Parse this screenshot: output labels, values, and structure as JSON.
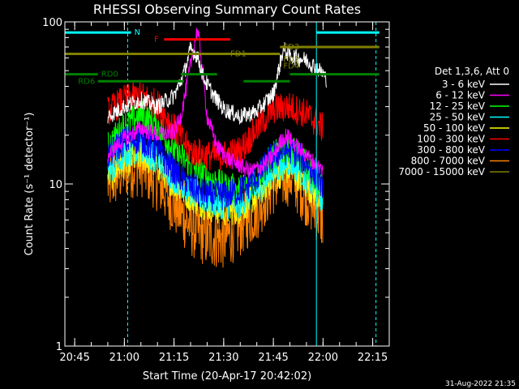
{
  "chart_data": {
    "type": "line",
    "title": "RHESSI Observing Summary Count Rates",
    "xlabel": "Start Time (20-Apr-17 20:42:02)",
    "ylabel": "Count Rate (s⁻¹ detector⁻¹)",
    "y_scale": "log",
    "ylim": [
      1,
      100
    ],
    "xlim_minutes": [
      "20:42:02",
      "22:20:00"
    ],
    "x_ticks": [
      "20:45",
      "21:00",
      "21:15",
      "21:30",
      "21:45",
      "22:00",
      "22:15"
    ],
    "y_ticks": [
      "1",
      "10",
      "100"
    ],
    "legend_title": "Det 1,3,6, Att 0",
    "series": [
      {
        "name": "3 - 6 keV",
        "color": "#ffffff",
        "x": [
          "20:55",
          "21:00",
          "21:05",
          "21:10",
          "21:15",
          "21:18",
          "21:20",
          "21:22",
          "21:24",
          "21:27",
          "21:30",
          "21:35",
          "21:40",
          "21:45",
          "21:48",
          "21:50",
          "21:55",
          "21:58",
          "22:00",
          "22:01"
        ],
        "y": [
          26,
          30,
          33,
          30,
          35,
          48,
          68,
          62,
          45,
          35,
          29,
          26,
          28,
          36,
          68,
          62,
          58,
          52,
          48,
          44
        ]
      },
      {
        "name": "6 - 12 keV",
        "color": "#ff00ff",
        "x": [
          "20:55",
          "21:00",
          "21:05",
          "21:10",
          "21:15",
          "21:17",
          "21:19",
          "21:21",
          "21:22",
          "21:23",
          "21:25",
          "21:28",
          "21:32",
          "21:38",
          "21:42",
          "21:45",
          "21:47",
          "21:49",
          "21:52",
          "21:55",
          "22:00"
        ],
        "y": [
          15,
          19,
          22,
          20,
          21,
          26,
          42,
          70,
          90,
          66,
          26,
          17,
          14,
          12,
          13,
          15,
          18,
          20,
          17,
          15,
          12
        ]
      },
      {
        "name": "12 - 25 keV",
        "color": "#00ff00",
        "x": [
          "20:55",
          "21:00",
          "21:05",
          "21:10",
          "21:15",
          "21:20",
          "21:25",
          "21:30",
          "21:35",
          "21:40",
          "21:45",
          "21:50",
          "21:55",
          "22:00"
        ],
        "y": [
          17,
          23,
          27,
          23,
          16,
          13,
          11,
          9.6,
          9.2,
          11,
          15,
          17,
          13,
          9.5
        ]
      },
      {
        "name": "25 - 50 keV",
        "color": "#00ffff",
        "x": [
          "20:55",
          "21:00",
          "21:05",
          "21:10",
          "21:15",
          "21:20",
          "21:25",
          "21:30",
          "21:35",
          "21:40",
          "21:45",
          "21:50",
          "21:55",
          "22:00"
        ],
        "y": [
          12,
          15,
          17,
          14,
          11,
          9,
          8,
          7.5,
          7.6,
          9,
          12,
          14,
          11,
          8
        ]
      },
      {
        "name": "50 - 100 keV",
        "color": "#ffff00",
        "x": [
          "20:55",
          "21:00",
          "21:05",
          "21:10",
          "21:15",
          "21:20",
          "21:25",
          "21:30",
          "21:35",
          "21:40",
          "21:45",
          "21:50",
          "21:55",
          "22:00"
        ],
        "y": [
          11,
          13.5,
          15,
          13,
          10,
          8.3,
          7.3,
          6.8,
          7,
          8.5,
          11,
          12.5,
          10,
          7.5
        ]
      },
      {
        "name": "100 - 300 keV",
        "color": "#ff0000",
        "x": [
          "20:55",
          "21:00",
          "21:05",
          "21:10",
          "21:15",
          "21:20",
          "21:25",
          "21:30",
          "21:35",
          "21:40",
          "21:45",
          "21:50",
          "21:55",
          "22:00"
        ],
        "y": [
          28,
          33,
          35,
          31,
          22,
          16,
          15,
          15,
          16,
          22,
          29,
          30,
          27,
          22
        ]
      },
      {
        "name": "300 - 800 keV",
        "color": "#0000ff",
        "x": [
          "20:55",
          "21:00",
          "21:05",
          "21:10",
          "21:15",
          "21:20",
          "21:25",
          "21:30",
          "21:35",
          "21:40",
          "21:45",
          "21:50",
          "21:55",
          "22:00"
        ],
        "y": [
          15,
          18.5,
          19,
          16,
          12,
          9.5,
          8.5,
          8.5,
          9,
          11,
          15,
          16.5,
          13.5,
          10
        ]
      },
      {
        "name": "800 - 7000 keV",
        "color": "#ff8000",
        "x": [
          "20:55",
          "21:00",
          "21:05",
          "21:10",
          "21:15",
          "21:20",
          "21:25",
          "21:30",
          "21:35",
          "21:40",
          "21:45",
          "21:50",
          "21:55",
          "22:00"
        ],
        "y": [
          10,
          12.5,
          13,
          10.5,
          7.5,
          5.5,
          4.7,
          4.6,
          5.5,
          7,
          10,
          11.5,
          8.5,
          6
        ]
      },
      {
        "name": "7000 - 15000 keV",
        "color": "#808000",
        "x": [],
        "y": []
      }
    ],
    "flags": [
      {
        "label": "N",
        "color": "#00ffff",
        "level": 86,
        "segments": [
          [
            "20:42:02",
            "21:02"
          ],
          [
            "21:58",
            "22:17"
          ]
        ],
        "label_at": "21:03"
      },
      {
        "label": "F",
        "color": "#ff0000",
        "level": 78,
        "segments": [
          [
            "21:12",
            "21:32"
          ]
        ],
        "label_at": "21:09"
      },
      {
        "label": "FD1",
        "color": "#808000",
        "level": 63.5,
        "segments": [
          [
            "20:42:02",
            "21:47"
          ]
        ],
        "label_at": "21:32"
      },
      {
        "label": "FD3",
        "color": "#808000",
        "level": 70,
        "segments": [
          [
            "21:47",
            "22:17"
          ]
        ],
        "label_at": "21:48"
      },
      {
        "label": "FD2",
        "color": "#808000",
        "level": 58.5,
        "segments": [],
        "label_at": "21:48"
      },
      {
        "label": "FD4",
        "color": "#808000",
        "level": 53.5,
        "segments": [],
        "label_at": "21:48"
      },
      {
        "label": "RD0",
        "color": "#008000",
        "level": 47.5,
        "segments": [
          [
            "20:42:02",
            "20:52"
          ],
          [
            "21:17",
            "21:28"
          ],
          [
            "21:50",
            "22:17"
          ]
        ],
        "label_at": "20:53"
      },
      {
        "label": "RD6",
        "color": "#008000",
        "level": 43,
        "segments": [
          [
            "20:52",
            "21:18"
          ],
          [
            "21:36",
            "21:50"
          ]
        ],
        "label_at": "20:46"
      }
    ],
    "vlines": [
      {
        "x": "20:42:02",
        "color": "#00ffff",
        "style": "solid"
      },
      {
        "x": "21:01",
        "color": "#00ffff",
        "style": "dashed"
      },
      {
        "x": "21:58",
        "color": "#00ffff",
        "style": "solid"
      },
      {
        "x": "22:16",
        "color": "#00ffff",
        "style": "dashed"
      }
    ],
    "legend_placement": "right"
  },
  "timestamp": "31-Aug-2022 21:35"
}
